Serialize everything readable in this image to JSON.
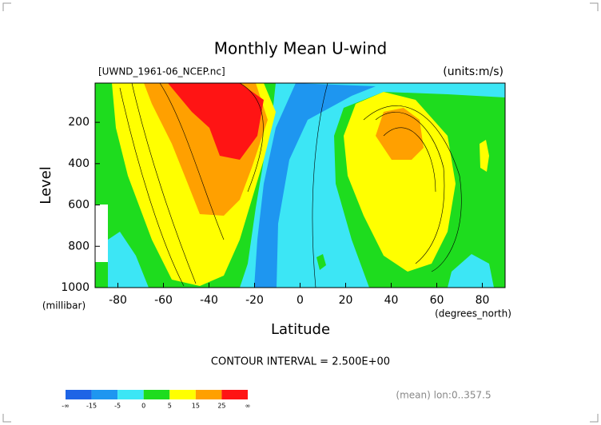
{
  "chart_data": {
    "type": "contour",
    "title": "Monthly Mean U-wind",
    "subtitle": "[UWND_1961-06_NCEP.nc]",
    "units": "(units:m/s)",
    "y_label": "Level",
    "y_unit": "(millibar)",
    "x_label": "Latitude",
    "x_unit": "(degrees_north)",
    "annotation": "CONTOUR INTERVAL = 2.500E+00",
    "footnote": "(mean) lon:0..357.5",
    "xlim": [
      -90,
      90
    ],
    "xticks": [
      -80,
      -60,
      -40,
      -20,
      0,
      20,
      40,
      60,
      80
    ],
    "ylim": [
      1000,
      10
    ],
    "yticks": [
      200,
      400,
      600,
      800,
      1000
    ],
    "colorbar": {
      "levels": [
        "-∞",
        -15,
        -5,
        0,
        5,
        15,
        25,
        "∞"
      ],
      "colors": [
        "#1e64e6",
        "#1e96f0",
        "#3ce6f5",
        "#1edc1e",
        "#ffff00",
        "#ffa000",
        "#ff1414"
      ]
    }
  }
}
